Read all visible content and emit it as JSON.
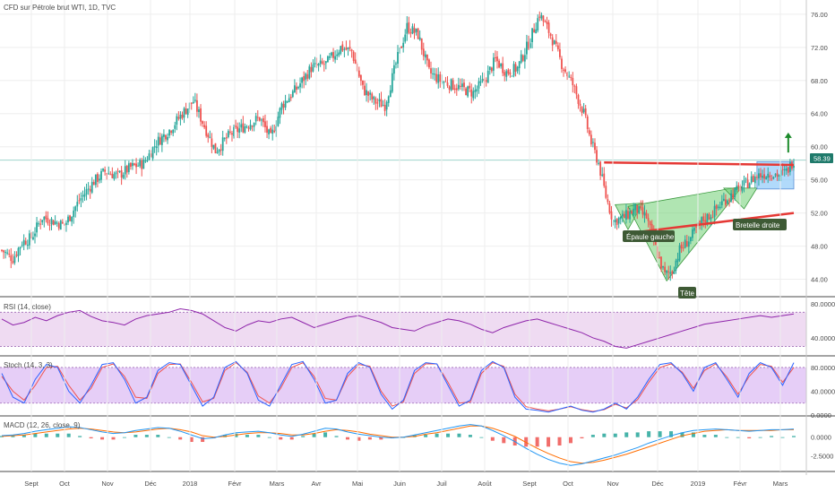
{
  "chart_data": [
    {
      "type": "candlestick",
      "title": "CFD sur Pétrole brut WTI, 1D, TVC",
      "last_price_label": "58.39",
      "last_price": 58.39,
      "ylim": [
        42,
        77.5
      ],
      "y_ticks": [
        "76.00",
        "72.00",
        "68.00",
        "64.00",
        "60.00",
        "56.00",
        "52.00",
        "48.00",
        "44.00"
      ],
      "x_ticks": [
        "Sept",
        "Oct",
        "Nov",
        "Déc",
        "2018",
        "Févr",
        "Mars",
        "Avr",
        "Mai",
        "Juin",
        "Juil",
        "Août",
        "Sept",
        "Oct",
        "Nov",
        "Déc",
        "2019",
        "Févr",
        "Mars"
      ],
      "price_path": [
        {
          "t": 0,
          "v": 47.5
        },
        {
          "t": 6,
          "v": 46.5
        },
        {
          "t": 11,
          "v": 48.5
        },
        {
          "t": 16,
          "v": 49.0
        },
        {
          "t": 22,
          "v": 51.5
        },
        {
          "t": 28,
          "v": 51.0
        },
        {
          "t": 34,
          "v": 50.5
        },
        {
          "t": 42,
          "v": 53.5
        },
        {
          "t": 50,
          "v": 55.8
        },
        {
          "t": 56,
          "v": 57.0
        },
        {
          "t": 63,
          "v": 56.5
        },
        {
          "t": 70,
          "v": 57.5
        },
        {
          "t": 77,
          "v": 58.0
        },
        {
          "t": 84,
          "v": 60.5
        },
        {
          "t": 91,
          "v": 62.0
        },
        {
          "t": 98,
          "v": 64.0
        },
        {
          "t": 104,
          "v": 65.5
        },
        {
          "t": 110,
          "v": 62.5
        },
        {
          "t": 116,
          "v": 59.5
        },
        {
          "t": 124,
          "v": 61.5
        },
        {
          "t": 132,
          "v": 62.5
        },
        {
          "t": 140,
          "v": 63.5
        },
        {
          "t": 146,
          "v": 61.0
        },
        {
          "t": 152,
          "v": 65.0
        },
        {
          "t": 160,
          "v": 67.0
        },
        {
          "t": 168,
          "v": 69.5
        },
        {
          "t": 176,
          "v": 70.0
        },
        {
          "t": 184,
          "v": 72.0
        },
        {
          "t": 190,
          "v": 71.5
        },
        {
          "t": 196,
          "v": 67.0
        },
        {
          "t": 202,
          "v": 65.5
        },
        {
          "t": 208,
          "v": 65.0
        },
        {
          "t": 214,
          "v": 70.0
        },
        {
          "t": 220,
          "v": 74.5
        },
        {
          "t": 226,
          "v": 73.5
        },
        {
          "t": 232,
          "v": 69.0
        },
        {
          "t": 238,
          "v": 68.0
        },
        {
          "t": 244,
          "v": 67.5
        },
        {
          "t": 250,
          "v": 67.0
        },
        {
          "t": 256,
          "v": 66.5
        },
        {
          "t": 262,
          "v": 68.0
        },
        {
          "t": 268,
          "v": 70.5
        },
        {
          "t": 274,
          "v": 69.0
        },
        {
          "t": 280,
          "v": 69.5
        },
        {
          "t": 286,
          "v": 72.5
        },
        {
          "t": 292,
          "v": 76.0
        },
        {
          "t": 298,
          "v": 73.5
        },
        {
          "t": 304,
          "v": 70.0
        },
        {
          "t": 310,
          "v": 67.5
        },
        {
          "t": 316,
          "v": 64.0
        },
        {
          "t": 320,
          "v": 60.5
        },
        {
          "t": 324,
          "v": 58.0
        },
        {
          "t": 328,
          "v": 54.0
        },
        {
          "t": 332,
          "v": 51.0
        },
        {
          "t": 338,
          "v": 51.5
        },
        {
          "t": 344,
          "v": 52.5
        },
        {
          "t": 350,
          "v": 51.5
        },
        {
          "t": 356,
          "v": 47.0
        },
        {
          "t": 360,
          "v": 44.5
        },
        {
          "t": 364,
          "v": 45.0
        },
        {
          "t": 368,
          "v": 47.5
        },
        {
          "t": 374,
          "v": 49.0
        },
        {
          "t": 380,
          "v": 51.0
        },
        {
          "t": 386,
          "v": 52.0
        },
        {
          "t": 392,
          "v": 53.5
        },
        {
          "t": 398,
          "v": 54.5
        },
        {
          "t": 404,
          "v": 55.5
        },
        {
          "t": 410,
          "v": 56.5
        },
        {
          "t": 416,
          "v": 56.8
        },
        {
          "t": 422,
          "v": 56.6
        },
        {
          "t": 426,
          "v": 57.0
        },
        {
          "t": 430,
          "v": 58.39
        }
      ],
      "annotations": [
        "Épaule gauche",
        "Tête",
        "Bretelle droite"
      ],
      "colors": {
        "up": "#26a69a",
        "down": "#ef5350",
        "neckline": "#e53935",
        "pattern_fill": "#6fcf73",
        "rect_fill": "#90caf9",
        "arrow": "#1b8a2a",
        "label_bg": "#3e5a35",
        "price_tag": "#1f7a6b"
      }
    },
    {
      "type": "line",
      "title": "RSI (14, close)",
      "ylim": [
        20,
        85
      ],
      "y_ticks": [
        "80.0000",
        "40.0000"
      ],
      "band": [
        30,
        70
      ],
      "series": [
        {
          "values": [
            62,
            55,
            58,
            64,
            60,
            66,
            70,
            72,
            65,
            60,
            58,
            55,
            62,
            66,
            68,
            70,
            74,
            72,
            68,
            60,
            52,
            48,
            55,
            60,
            58,
            62,
            64,
            58,
            52,
            56,
            60,
            64,
            66,
            62,
            58,
            52,
            50,
            48,
            54,
            58,
            62,
            60,
            56,
            50,
            46,
            52,
            56,
            60,
            62,
            58,
            54,
            50,
            46,
            40,
            36,
            30,
            28,
            32,
            36,
            40,
            44,
            48,
            52,
            56,
            58,
            60,
            62,
            64,
            66,
            64,
            66,
            68
          ]
        }
      ],
      "colors": {
        "line": "#8e24aa",
        "band": "#e1bee7"
      }
    },
    {
      "type": "line",
      "title": "Stoch (14, 3, 3)",
      "ylim": [
        0,
        95
      ],
      "y_ticks": [
        "80.0000",
        "40.0000",
        "0.0000"
      ],
      "band": [
        20,
        80
      ],
      "series": [
        {
          "values": [
            70,
            30,
            20,
            60,
            85,
            80,
            40,
            20,
            50,
            85,
            88,
            60,
            20,
            30,
            75,
            88,
            85,
            50,
            15,
            30,
            80,
            90,
            70,
            25,
            15,
            50,
            85,
            90,
            60,
            20,
            25,
            70,
            88,
            80,
            35,
            10,
            25,
            75,
            88,
            86,
            50,
            15,
            25,
            75,
            90,
            80,
            30,
            10,
            8,
            5,
            10,
            15,
            8,
            5,
            10,
            20,
            10,
            30,
            60,
            85,
            88,
            70,
            40,
            80,
            88,
            60,
            30,
            70,
            88,
            80,
            50,
            88
          ]
        },
        {
          "values": [
            65,
            40,
            25,
            50,
            80,
            82,
            50,
            25,
            45,
            80,
            86,
            65,
            30,
            28,
            70,
            85,
            86,
            55,
            22,
            28,
            75,
            88,
            72,
            32,
            20,
            45,
            80,
            88,
            65,
            28,
            25,
            65,
            85,
            82,
            40,
            15,
            22,
            70,
            86,
            86,
            55,
            20,
            22,
            70,
            88,
            82,
            35,
            14,
            10,
            7,
            10,
            14,
            9,
            6,
            9,
            18,
            12,
            26,
            55,
            80,
            86,
            72,
            45,
            75,
            86,
            64,
            35,
            65,
            85,
            82,
            55,
            80
          ]
        }
      ],
      "colors": {
        "k": "#2962ff",
        "d": "#ef5350",
        "band": "#d1a6f0"
      }
    },
    {
      "type": "bar",
      "title": "MACD (12, 26, close, 9)",
      "ylim": [
        -4.5,
        2.5
      ],
      "y_ticks": [
        "0.0000",
        "-2.5000"
      ],
      "macd": [
        0.2,
        0.3,
        0.5,
        0.8,
        1.0,
        1.2,
        1.4,
        1.3,
        1.0,
        0.7,
        0.5,
        0.6,
        0.9,
        1.1,
        1.3,
        1.2,
        0.8,
        0.3,
        -0.2,
        -0.1,
        0.3,
        0.6,
        0.7,
        0.8,
        0.6,
        0.3,
        0.1,
        0.4,
        0.8,
        1.2,
        1.1,
        0.7,
        0.4,
        0.2,
        0.0,
        -0.1,
        0.0,
        0.3,
        0.6,
        0.9,
        1.2,
        1.5,
        1.7,
        1.5,
        0.9,
        0.2,
        -0.6,
        -1.5,
        -2.3,
        -3.0,
        -3.5,
        -3.8,
        -3.6,
        -3.2,
        -2.8,
        -2.4,
        -1.9,
        -1.4,
        -0.8,
        -0.3,
        0.2,
        0.6,
        0.9,
        1.0,
        1.1,
        1.0,
        0.9,
        0.8,
        0.9,
        1.0,
        1.0,
        1.1
      ],
      "signal": [
        0.1,
        0.2,
        0.3,
        0.5,
        0.7,
        0.9,
        1.1,
        1.2,
        1.1,
        0.9,
        0.7,
        0.6,
        0.7,
        0.9,
        1.1,
        1.2,
        1.0,
        0.7,
        0.2,
        0.0,
        0.1,
        0.3,
        0.5,
        0.6,
        0.6,
        0.5,
        0.3,
        0.3,
        0.5,
        0.8,
        1.0,
        0.9,
        0.7,
        0.4,
        0.2,
        0.0,
        0.0,
        0.1,
        0.4,
        0.6,
        0.9,
        1.2,
        1.5,
        1.5,
        1.2,
        0.7,
        0.1,
        -0.7,
        -1.5,
        -2.2,
        -2.8,
        -3.3,
        -3.5,
        -3.4,
        -3.1,
        -2.7,
        -2.3,
        -1.8,
        -1.3,
        -0.8,
        -0.3,
        0.2,
        0.5,
        0.8,
        0.9,
        1.0,
        0.9,
        0.9,
        0.9,
        0.9,
        1.0,
        1.0
      ],
      "colors": {
        "macd": "#2196f3",
        "signal": "#ff6d00",
        "hist_up": "#26a69a",
        "hist_down": "#ef5350"
      }
    }
  ]
}
